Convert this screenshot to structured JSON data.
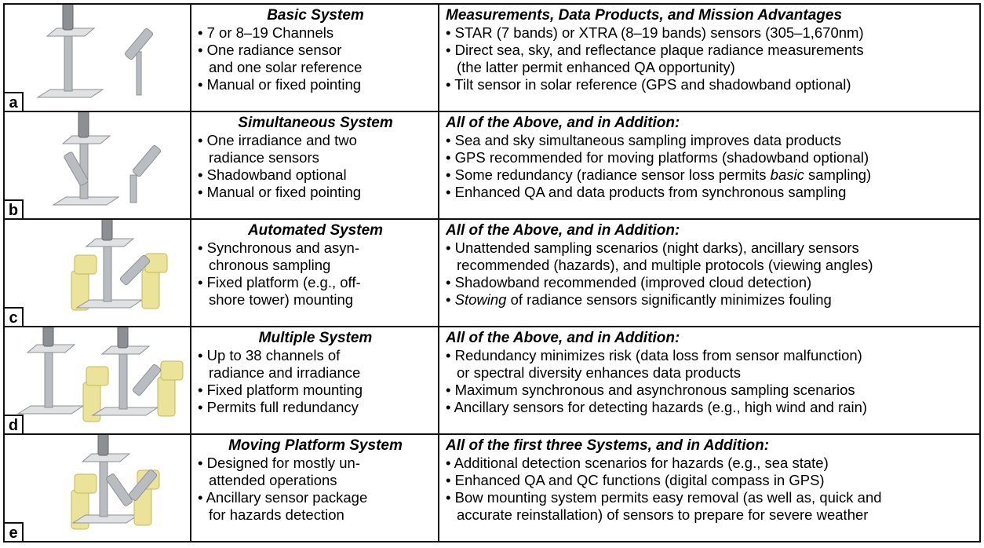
{
  "table": {
    "rows": [
      {
        "label": "a",
        "title": "Basic System",
        "bullets": [
          [
            "• 7 or 8–19 Channels"
          ],
          [
            "• One radiance sensor",
            "and one solar reference"
          ],
          [
            "• Manual or fixed pointing"
          ]
        ],
        "right_title": "Measurements, Data Products, and Mission Advantages",
        "right_bullets": [
          [
            "• STAR (7 bands) or XTRA (8–19 bands) sensors (305–1,670nm)"
          ],
          [
            "• Direct sea, sky, and reflectance plaque radiance measurements",
            "(the latter permit enhanced QA opportunity)"
          ],
          [
            "• Tilt sensor in solar reference (GPS and shadowband optional)"
          ]
        ]
      },
      {
        "label": "b",
        "title": "Simultaneous System",
        "bullets": [
          [
            "• One irradiance and two",
            "radiance sensors"
          ],
          [
            "• Shadowband optional"
          ],
          [
            "• Manual or fixed pointing"
          ]
        ],
        "right_title": "All of the Above, and in Addition:",
        "right_bullets": [
          [
            "• Sea and sky simultaneous sampling improves data products"
          ],
          [
            "• GPS recommended for moving platforms (shadowband optional)"
          ],
          [
            {
              "pre": "• Some redundancy (radiance sensor loss permits ",
              "em": "basic",
              "post": " sampling)"
            }
          ],
          [
            "• Enhanced QA and data products from synchronous sampling"
          ]
        ]
      },
      {
        "label": "c",
        "title": "Automated System",
        "bullets": [
          [
            "• Synchronous and asyn-",
            "chronous sampling"
          ],
          [
            "• Fixed platform (e.g., off-",
            "shore tower) mounting"
          ]
        ],
        "right_title": "All of the Above, and in Addition:",
        "right_bullets": [
          [
            "• Unattended sampling scenarios (night darks), ancillary sensors",
            "recommended (hazards), and multiple protocols (viewing angles)"
          ],
          [
            "• Shadowband recommended (improved cloud detection)"
          ],
          [
            {
              "pre": "• ",
              "em": "Stowing",
              "post": " of radiance sensors significantly minimizes fouling"
            }
          ]
        ]
      },
      {
        "label": "d",
        "title": "Multiple System",
        "bullets": [
          [
            "• Up to 38 channels of",
            "radiance and irradiance"
          ],
          [
            "• Fixed platform mounting"
          ],
          [
            "• Permits full redundancy"
          ]
        ],
        "right_title": "All of the Above, and in Addition:",
        "right_bullets": [
          [
            "• Redundancy minimizes risk (data loss from sensor malfunction)",
            "or spectral diversity enhances data products"
          ],
          [
            "• Maximum synchronous and asynchronous sampling scenarios"
          ],
          [
            "• Ancillary sensors for detecting hazards (e.g., high wind and rain)"
          ]
        ]
      },
      {
        "label": "e",
        "title": "Moving Platform System",
        "bullets": [
          [
            "• Designed for mostly un-",
            "attended operations"
          ],
          [
            "• Ancillary sensor package",
            "for hazards detection"
          ]
        ],
        "right_title": "All of the first three Systems, and in Addition:",
        "right_bullets": [
          [
            "• Additional detection scenarios for hazards (e.g., sea state)"
          ],
          [
            "• Enhanced QA and QC functions (digital compass in GPS)"
          ],
          [
            "• Bow mounting system permits easy removal (as well as, quick and",
            "accurate reinstallation) of sensors to prepare for severe weather"
          ]
        ]
      }
    ]
  }
}
